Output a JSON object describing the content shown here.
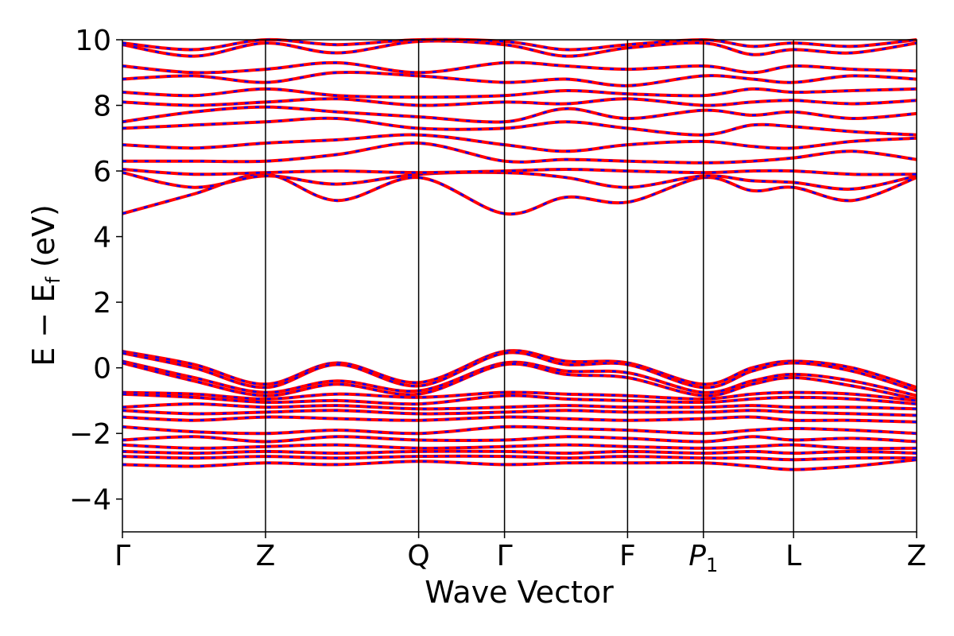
{
  "chart_data": {
    "type": "line",
    "xlabel": "Wave Vector",
    "ylabel": "E − E",
    "ylabel_sub": "f",
    "ylabel_unit": " (eV)",
    "ylim": [
      -5,
      10
    ],
    "yticks": [
      -4,
      -2,
      0,
      2,
      4,
      6,
      8,
      10
    ],
    "ytick_labels": [
      "−4",
      "−2",
      "0",
      "2",
      "4",
      "6",
      "8",
      "10"
    ],
    "kpoints": [
      {
        "label": "Γ",
        "sub": "",
        "pos": 0.0
      },
      {
        "label": "Z",
        "sub": "",
        "pos": 1.0
      },
      {
        "label": "Q",
        "sub": "",
        "pos": 2.07
      },
      {
        "label": "Γ",
        "sub": "",
        "pos": 2.67
      },
      {
        "label": "F",
        "sub": "",
        "pos": 3.53
      },
      {
        "label": "P",
        "sub": "1",
        "pos": 4.06
      },
      {
        "label": "L",
        "sub": "",
        "pos": 4.69
      },
      {
        "label": "Z",
        "sub": "",
        "pos": 5.55
      }
    ],
    "grid": false,
    "series_colors": {
      "primary": "#ff0000",
      "overlay": "#0000ff"
    },
    "bands": [
      {
        "x": [
          0.0,
          0.5,
          1.0,
          1.5,
          2.07,
          2.67,
          3.1,
          3.53,
          4.06,
          4.4,
          4.69,
          5.1,
          5.55
        ],
        "y": [
          0.5,
          0.1,
          -0.5,
          0.15,
          -0.45,
          0.5,
          0.2,
          0.15,
          -0.5,
          0.0,
          0.2,
          0.0,
          -0.6
        ]
      },
      {
        "x": [
          0.0,
          0.5,
          1.0,
          1.5,
          2.07,
          2.67,
          3.1,
          3.53,
          4.06,
          4.4,
          4.69,
          5.1,
          5.55
        ],
        "y": [
          0.45,
          0.0,
          -0.6,
          0.1,
          -0.55,
          0.45,
          0.1,
          0.1,
          -0.6,
          -0.1,
          0.15,
          -0.1,
          -0.7
        ]
      },
      {
        "x": [
          0.0,
          0.5,
          1.0,
          1.5,
          2.07,
          2.67,
          3.1,
          3.53,
          4.06,
          4.4,
          4.69,
          5.1,
          5.55
        ],
        "y": [
          0.2,
          -0.3,
          -0.75,
          -0.4,
          -0.7,
          0.15,
          -0.1,
          -0.15,
          -0.75,
          -0.4,
          -0.2,
          -0.4,
          -0.85
        ]
      },
      {
        "x": [
          0.0,
          0.5,
          1.0,
          1.5,
          2.07,
          2.67,
          3.1,
          3.53,
          4.06,
          4.4,
          4.69,
          5.1,
          5.55
        ],
        "y": [
          0.15,
          -0.4,
          -0.85,
          -0.5,
          -0.8,
          0.1,
          -0.2,
          -0.3,
          -0.85,
          -0.5,
          -0.3,
          -0.55,
          -0.95
        ]
      },
      {
        "x": [
          0.0,
          0.5,
          1.0,
          1.5,
          2.07,
          2.67,
          3.1,
          3.53,
          4.06,
          4.4,
          4.69,
          5.1,
          5.55
        ],
        "y": [
          -0.75,
          -0.8,
          -0.95,
          -0.8,
          -0.9,
          -0.75,
          -0.8,
          -0.85,
          -0.95,
          -0.8,
          -0.75,
          -0.8,
          -1.0
        ]
      },
      {
        "x": [
          0.0,
          0.5,
          1.0,
          1.5,
          2.07,
          2.67,
          3.1,
          3.53,
          4.06,
          4.4,
          4.69,
          5.1,
          5.55
        ],
        "y": [
          -0.8,
          -0.9,
          -1.05,
          -1.0,
          -1.1,
          -0.85,
          -0.95,
          -1.0,
          -1.05,
          -0.95,
          -0.9,
          -0.95,
          -1.1
        ]
      },
      {
        "x": [
          0.0,
          0.5,
          1.0,
          1.5,
          2.07,
          2.67,
          3.1,
          3.53,
          4.06,
          4.4,
          4.69,
          5.1,
          5.55
        ],
        "y": [
          -1.2,
          -1.1,
          -1.2,
          -1.15,
          -1.25,
          -1.2,
          -1.15,
          -1.2,
          -1.2,
          -1.15,
          -1.2,
          -1.2,
          -1.25
        ]
      },
      {
        "x": [
          0.0,
          0.5,
          1.0,
          1.5,
          2.07,
          2.67,
          3.1,
          3.53,
          4.06,
          4.4,
          4.69,
          5.1,
          5.55
        ],
        "y": [
          -1.3,
          -1.4,
          -1.35,
          -1.3,
          -1.4,
          -1.35,
          -1.3,
          -1.35,
          -1.35,
          -1.3,
          -1.35,
          -1.4,
          -1.45
        ]
      },
      {
        "x": [
          0.0,
          0.5,
          1.0,
          1.5,
          2.07,
          2.67,
          3.1,
          3.53,
          4.06,
          4.4,
          4.69,
          5.1,
          5.55
        ],
        "y": [
          -1.5,
          -1.6,
          -1.5,
          -1.55,
          -1.6,
          -1.5,
          -1.55,
          -1.6,
          -1.55,
          -1.5,
          -1.6,
          -1.6,
          -1.65
        ]
      },
      {
        "x": [
          0.0,
          0.5,
          1.0,
          1.5,
          2.07,
          2.67,
          3.1,
          3.53,
          4.06,
          4.4,
          4.69,
          5.1,
          5.55
        ],
        "y": [
          -1.8,
          -1.95,
          -2.0,
          -1.9,
          -2.0,
          -1.8,
          -1.85,
          -1.9,
          -2.0,
          -1.9,
          -1.85,
          -1.9,
          -2.0
        ]
      },
      {
        "x": [
          0.0,
          0.5,
          1.0,
          1.5,
          2.07,
          2.67,
          3.1,
          3.53,
          4.06,
          4.4,
          4.69,
          5.1,
          5.55
        ],
        "y": [
          -2.2,
          -2.1,
          -2.25,
          -2.1,
          -2.2,
          -2.2,
          -2.1,
          -2.15,
          -2.25,
          -2.1,
          -2.2,
          -2.15,
          -2.25
        ]
      },
      {
        "x": [
          0.0,
          0.5,
          1.0,
          1.5,
          2.07,
          2.67,
          3.1,
          3.53,
          4.06,
          4.4,
          4.69,
          5.1,
          5.55
        ],
        "y": [
          -2.35,
          -2.45,
          -2.4,
          -2.35,
          -2.45,
          -2.4,
          -2.35,
          -2.4,
          -2.45,
          -2.4,
          -2.35,
          -2.45,
          -2.45
        ]
      },
      {
        "x": [
          0.0,
          0.5,
          1.0,
          1.5,
          2.07,
          2.67,
          3.1,
          3.53,
          4.06,
          4.4,
          4.69,
          5.1,
          5.55
        ],
        "y": [
          -2.55,
          -2.6,
          -2.55,
          -2.6,
          -2.55,
          -2.55,
          -2.6,
          -2.55,
          -2.6,
          -2.55,
          -2.6,
          -2.55,
          -2.6
        ]
      },
      {
        "x": [
          0.0,
          0.5,
          1.0,
          1.5,
          2.07,
          2.67,
          3.1,
          3.53,
          4.06,
          4.4,
          4.69,
          5.1,
          5.55
        ],
        "y": [
          -2.7,
          -2.75,
          -2.7,
          -2.75,
          -2.7,
          -2.7,
          -2.75,
          -2.7,
          -2.75,
          -2.75,
          -2.8,
          -2.75,
          -2.75
        ]
      },
      {
        "x": [
          0.0,
          0.5,
          1.0,
          1.5,
          2.07,
          2.67,
          3.1,
          3.53,
          4.06,
          4.4,
          4.69,
          5.1,
          5.55
        ],
        "y": [
          -2.95,
          -3.0,
          -2.9,
          -2.95,
          -2.85,
          -2.95,
          -2.9,
          -2.9,
          -2.9,
          -3.0,
          -3.1,
          -3.0,
          -2.8
        ]
      },
      {
        "x": [
          0.0,
          0.5,
          1.0,
          1.5,
          2.07,
          2.67,
          3.1,
          3.53,
          4.06,
          4.4,
          4.69,
          5.1,
          5.55
        ],
        "y": [
          4.7,
          5.3,
          5.9,
          5.1,
          5.8,
          4.7,
          5.2,
          5.05,
          5.8,
          5.4,
          5.5,
          5.1,
          5.8
        ]
      },
      {
        "x": [
          0.0,
          0.5,
          1.0,
          1.5,
          2.07,
          2.67,
          3.1,
          3.53,
          4.06,
          4.4,
          4.69,
          5.1,
          5.55
        ],
        "y": [
          5.95,
          5.5,
          5.85,
          5.6,
          5.9,
          5.95,
          5.8,
          5.5,
          5.85,
          5.7,
          5.65,
          5.45,
          5.85
        ]
      },
      {
        "x": [
          0.0,
          0.5,
          1.0,
          1.5,
          2.07,
          2.67,
          3.1,
          3.53,
          4.06,
          4.4,
          4.69,
          5.1,
          5.55
        ],
        "y": [
          6.05,
          5.9,
          5.95,
          6.0,
          5.95,
          6.0,
          6.05,
          6.0,
          5.95,
          6.0,
          6.0,
          5.9,
          5.9
        ]
      },
      {
        "x": [
          0.0,
          0.5,
          1.0,
          1.5,
          2.07,
          2.67,
          3.1,
          3.53,
          4.06,
          4.4,
          4.69,
          5.1,
          5.55
        ],
        "y": [
          6.3,
          6.3,
          6.3,
          6.5,
          6.85,
          6.3,
          6.35,
          6.3,
          6.25,
          6.3,
          6.4,
          6.6,
          6.35
        ]
      },
      {
        "x": [
          0.0,
          0.5,
          1.0,
          1.5,
          2.07,
          2.67,
          3.1,
          3.53,
          4.06,
          4.4,
          4.69,
          5.1,
          5.55
        ],
        "y": [
          6.8,
          6.7,
          6.85,
          6.95,
          7.1,
          6.8,
          6.6,
          6.8,
          6.9,
          6.75,
          6.7,
          6.9,
          7.0
        ]
      },
      {
        "x": [
          0.0,
          0.5,
          1.0,
          1.5,
          2.07,
          2.67,
          3.1,
          3.53,
          4.06,
          4.4,
          4.69,
          5.1,
          5.55
        ],
        "y": [
          7.3,
          7.4,
          7.5,
          7.6,
          7.3,
          7.3,
          7.5,
          7.3,
          7.1,
          7.4,
          7.35,
          7.2,
          7.1
        ]
      },
      {
        "x": [
          0.0,
          0.5,
          1.0,
          1.5,
          2.07,
          2.67,
          3.1,
          3.53,
          4.06,
          4.4,
          4.69,
          5.1,
          5.55
        ],
        "y": [
          7.5,
          7.8,
          7.95,
          7.8,
          7.65,
          7.5,
          7.9,
          7.6,
          7.85,
          7.7,
          7.8,
          7.6,
          7.75
        ]
      },
      {
        "x": [
          0.0,
          0.5,
          1.0,
          1.5,
          2.07,
          2.67,
          3.1,
          3.53,
          4.06,
          4.4,
          4.69,
          5.1,
          5.55
        ],
        "y": [
          8.1,
          8.0,
          8.1,
          8.2,
          8.0,
          8.1,
          8.05,
          8.2,
          8.0,
          8.1,
          8.15,
          8.05,
          8.15
        ]
      },
      {
        "x": [
          0.0,
          0.5,
          1.0,
          1.5,
          2.07,
          2.67,
          3.1,
          3.53,
          4.06,
          4.4,
          4.69,
          5.1,
          5.55
        ],
        "y": [
          8.4,
          8.3,
          8.5,
          8.3,
          8.25,
          8.3,
          8.45,
          8.35,
          8.3,
          8.5,
          8.4,
          8.45,
          8.5
        ]
      },
      {
        "x": [
          0.0,
          0.5,
          1.0,
          1.5,
          2.07,
          2.67,
          3.1,
          3.53,
          4.06,
          4.4,
          4.69,
          5.1,
          5.55
        ],
        "y": [
          8.8,
          8.9,
          8.7,
          9.0,
          8.9,
          8.7,
          8.8,
          8.6,
          8.9,
          8.8,
          8.7,
          8.9,
          8.8
        ]
      },
      {
        "x": [
          0.0,
          0.5,
          1.0,
          1.5,
          2.07,
          2.67,
          3.1,
          3.53,
          4.06,
          4.4,
          4.69,
          5.1,
          5.55
        ],
        "y": [
          9.2,
          9.0,
          9.1,
          9.3,
          9.0,
          9.3,
          9.2,
          9.1,
          9.2,
          9.0,
          9.2,
          9.1,
          9.05
        ]
      },
      {
        "x": [
          0.0,
          0.5,
          1.0,
          1.5,
          2.07,
          2.67,
          3.1,
          3.53,
          4.06,
          4.4,
          4.69,
          5.1,
          5.55
        ],
        "y": [
          9.85,
          9.5,
          9.9,
          9.6,
          9.95,
          9.85,
          9.5,
          9.75,
          9.9,
          9.55,
          9.7,
          9.6,
          9.9
        ]
      },
      {
        "x": [
          0.0,
          0.5,
          1.0,
          1.5,
          2.07,
          2.67,
          3.1,
          3.53,
          4.06,
          4.4,
          4.69,
          5.1,
          5.55
        ],
        "y": [
          9.9,
          9.7,
          10.0,
          9.85,
          10.0,
          9.95,
          9.7,
          9.85,
          10.0,
          9.8,
          9.9,
          9.8,
          10.0
        ]
      }
    ]
  }
}
